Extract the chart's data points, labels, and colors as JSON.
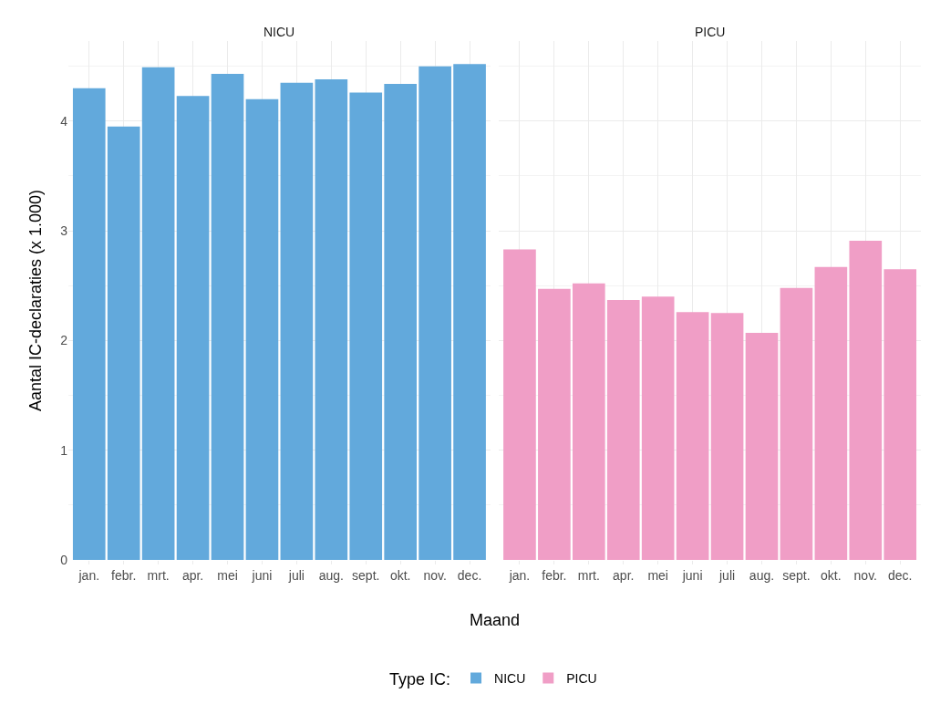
{
  "chart_data": [
    {
      "type": "bar",
      "title": "NICU",
      "xlabel": "Maand",
      "ylabel": "Aantal IC-declaraties (x 1.000)",
      "legend_title": "Type IC:",
      "legend": "bottom",
      "categories": [
        "jan.",
        "febr.",
        "mrt.",
        "apr.",
        "mei",
        "juni",
        "juli",
        "aug.",
        "sept.",
        "okt.",
        "nov.",
        "dec."
      ],
      "series": [
        {
          "name": "NICU",
          "color": "#62a9dc",
          "values": [
            4.3,
            3.95,
            4.49,
            4.23,
            4.43,
            4.2,
            4.35,
            4.38,
            4.26,
            4.34,
            4.5,
            4.52
          ]
        }
      ],
      "ylim": [
        0,
        4.73
      ],
      "yticks": [
        0,
        1,
        2,
        3,
        4
      ],
      "grid": true
    },
    {
      "type": "bar",
      "title": "PICU",
      "legend": "bottom",
      "categories": [
        "jan.",
        "febr.",
        "mrt.",
        "apr.",
        "mei",
        "juni",
        "juli",
        "aug.",
        "sept.",
        "okt.",
        "nov.",
        "dec."
      ],
      "series": [
        {
          "name": "PICU",
          "color": "#f09ec6",
          "values": [
            2.83,
            2.47,
            2.52,
            2.37,
            2.4,
            2.26,
            2.25,
            2.07,
            2.48,
            2.67,
            2.91,
            2.65
          ]
        }
      ],
      "ylim": [
        0,
        4.73
      ],
      "yticks": [
        0,
        1,
        2,
        3,
        4
      ],
      "grid": true,
      "tick_labels": "x"
    }
  ]
}
